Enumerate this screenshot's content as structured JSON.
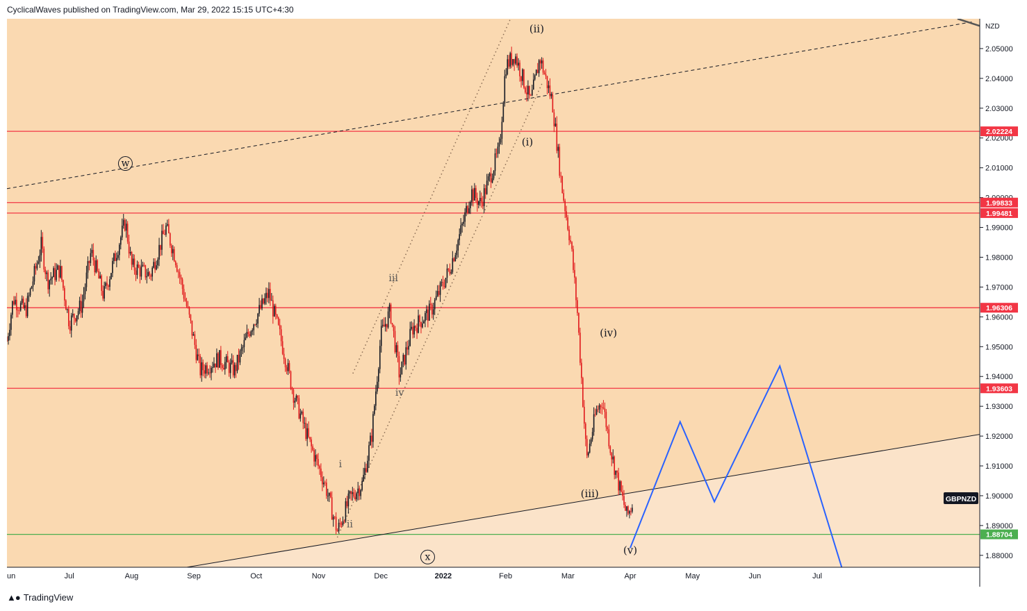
{
  "header": {
    "publisher": "CyclicalWaves published on TradingView.com, Mar 29, 2022 15:15 UTC+4:30"
  },
  "footer": {
    "logo_icon": "tradingview-logo-icon",
    "brand": "TradingView"
  },
  "colors": {
    "bg_upper": "#fad9b1",
    "bg_lower": "#fbe3c9",
    "up_candle": "#131722",
    "down_candle": "#e0181b",
    "resistance": "#f23645",
    "support": "#4caf50",
    "projection": "#2962ff"
  },
  "chart_data": {
    "type": "candlestick",
    "symbol": "GBPNZD",
    "currency": "NZD",
    "ylim": [
      1.876,
      2.06
    ],
    "y_ticks": [
      1.88,
      1.89,
      1.9,
      1.91,
      1.92,
      1.93,
      1.94,
      1.95,
      1.96,
      1.97,
      1.98,
      1.99,
      2.0,
      2.01,
      2.02,
      2.03,
      2.04,
      2.05
    ],
    "x_labels": [
      {
        "label": "un",
        "t": -0.1
      },
      {
        "label": "Jul",
        "t": 1
      },
      {
        "label": "Aug",
        "t": 2
      },
      {
        "label": "Sep",
        "t": 3
      },
      {
        "label": "Oct",
        "t": 4
      },
      {
        "label": "Nov",
        "t": 5
      },
      {
        "label": "Dec",
        "t": 6
      },
      {
        "label": "2022",
        "t": 7
      },
      {
        "label": "Feb",
        "t": 8
      },
      {
        "label": "Mar",
        "t": 9
      },
      {
        "label": "Apr",
        "t": 10
      },
      {
        "label": "May",
        "t": 11
      },
      {
        "label": "Jun",
        "t": 12
      },
      {
        "label": "Jul",
        "t": 13
      }
    ],
    "price_path": [
      [
        0,
        1.952
      ],
      [
        0.1,
        1.966
      ],
      [
        0.3,
        1.962
      ],
      [
        0.55,
        1.984
      ],
      [
        0.65,
        1.972
      ],
      [
        0.85,
        1.976
      ],
      [
        1.0,
        1.958
      ],
      [
        1.2,
        1.964
      ],
      [
        1.35,
        1.982
      ],
      [
        1.55,
        1.967
      ],
      [
        1.9,
        1.992
      ],
      [
        2.0,
        1.977
      ],
      [
        2.3,
        1.974
      ],
      [
        2.55,
        1.99
      ],
      [
        2.7,
        1.98
      ],
      [
        2.9,
        1.962
      ],
      [
        3.1,
        1.942
      ],
      [
        3.4,
        1.946
      ],
      [
        3.65,
        1.942
      ],
      [
        3.9,
        1.956
      ],
      [
        4.2,
        1.968
      ],
      [
        4.4,
        1.952
      ],
      [
        4.6,
        1.934
      ],
      [
        4.85,
        1.918
      ],
      [
        5.1,
        1.904
      ],
      [
        5.3,
        1.888
      ],
      [
        5.5,
        1.899
      ],
      [
        5.7,
        1.904
      ],
      [
        5.85,
        1.92
      ],
      [
        6.0,
        1.954
      ],
      [
        6.15,
        1.962
      ],
      [
        6.3,
        1.94
      ],
      [
        6.5,
        1.956
      ],
      [
        6.8,
        1.962
      ],
      [
        7.1,
        1.976
      ],
      [
        7.3,
        1.99
      ],
      [
        7.45,
        2.002
      ],
      [
        7.6,
        1.998
      ],
      [
        7.9,
        2.016
      ],
      [
        8.0,
        2.044
      ],
      [
        8.15,
        2.048
      ],
      [
        8.4,
        2.032
      ],
      [
        8.55,
        2.047
      ],
      [
        8.75,
        2.032
      ],
      [
        8.9,
        2.004
      ],
      [
        9.05,
        1.984
      ],
      [
        9.15,
        1.962
      ],
      [
        9.3,
        1.912
      ],
      [
        9.45,
        1.928
      ],
      [
        9.55,
        1.932
      ],
      [
        9.7,
        1.914
      ],
      [
        9.8,
        1.905
      ],
      [
        9.95,
        1.893
      ],
      [
        10.05,
        1.898
      ]
    ],
    "horizontal_levels": [
      {
        "value": 2.02224,
        "label": "2.02224",
        "color": "#f23645"
      },
      {
        "value": 1.99833,
        "label": "1.99833",
        "color": "#f23645"
      },
      {
        "value": 1.99481,
        "label": "1.99481",
        "color": "#f23645"
      },
      {
        "value": 1.96306,
        "label": "1.96306",
        "color": "#f23645"
      },
      {
        "value": 1.93603,
        "label": "1.93603",
        "color": "#f23645"
      },
      {
        "value": 1.88704,
        "label": "1.88704",
        "color": "#4caf50"
      }
    ],
    "current_price_label": "GBPNZD",
    "dashed_trendline": [
      [
        0,
        2.003
      ],
      [
        15.5,
        2.059
      ]
    ],
    "support_trendline": [
      [
        2.6,
        1.875
      ],
      [
        16.3,
        1.923
      ]
    ],
    "channel_lines": [
      [
        [
          5.3,
          1.886
        ],
        [
          8.6,
          2.039
        ]
      ],
      [
        [
          5.55,
          1.941
        ],
        [
          8.1,
          2.061
        ]
      ]
    ],
    "wave_labels": [
      {
        "label": "w",
        "t": 1.9,
        "v": 2.0105,
        "circled": true
      },
      {
        "label": "x",
        "t": 6.75,
        "v": 1.8785,
        "circled": true
      },
      {
        "label": "i",
        "t": 5.35,
        "v": 1.9095
      },
      {
        "label": "ii",
        "t": 5.5,
        "v": 1.8894
      },
      {
        "label": "iii",
        "t": 6.2,
        "v": 1.972
      },
      {
        "label": "iv",
        "t": 6.3,
        "v": 1.9335
      },
      {
        "label": "(i)",
        "t": 8.35,
        "v": 2.0175
      },
      {
        "label": "(ii)",
        "t": 8.5,
        "v": 2.0555
      },
      {
        "label": "(iii)",
        "t": 9.35,
        "v": 1.8995
      },
      {
        "label": "(iv)",
        "t": 9.65,
        "v": 1.9535
      },
      {
        "label": "(v)",
        "t": 10.0,
        "v": 1.8805
      }
    ],
    "projection_path": [
      [
        10.0,
        1.8825
      ],
      [
        10.8,
        1.9248
      ],
      [
        11.35,
        1.898
      ],
      [
        12.4,
        1.9435
      ],
      [
        13.4,
        1.8755
      ]
    ]
  }
}
